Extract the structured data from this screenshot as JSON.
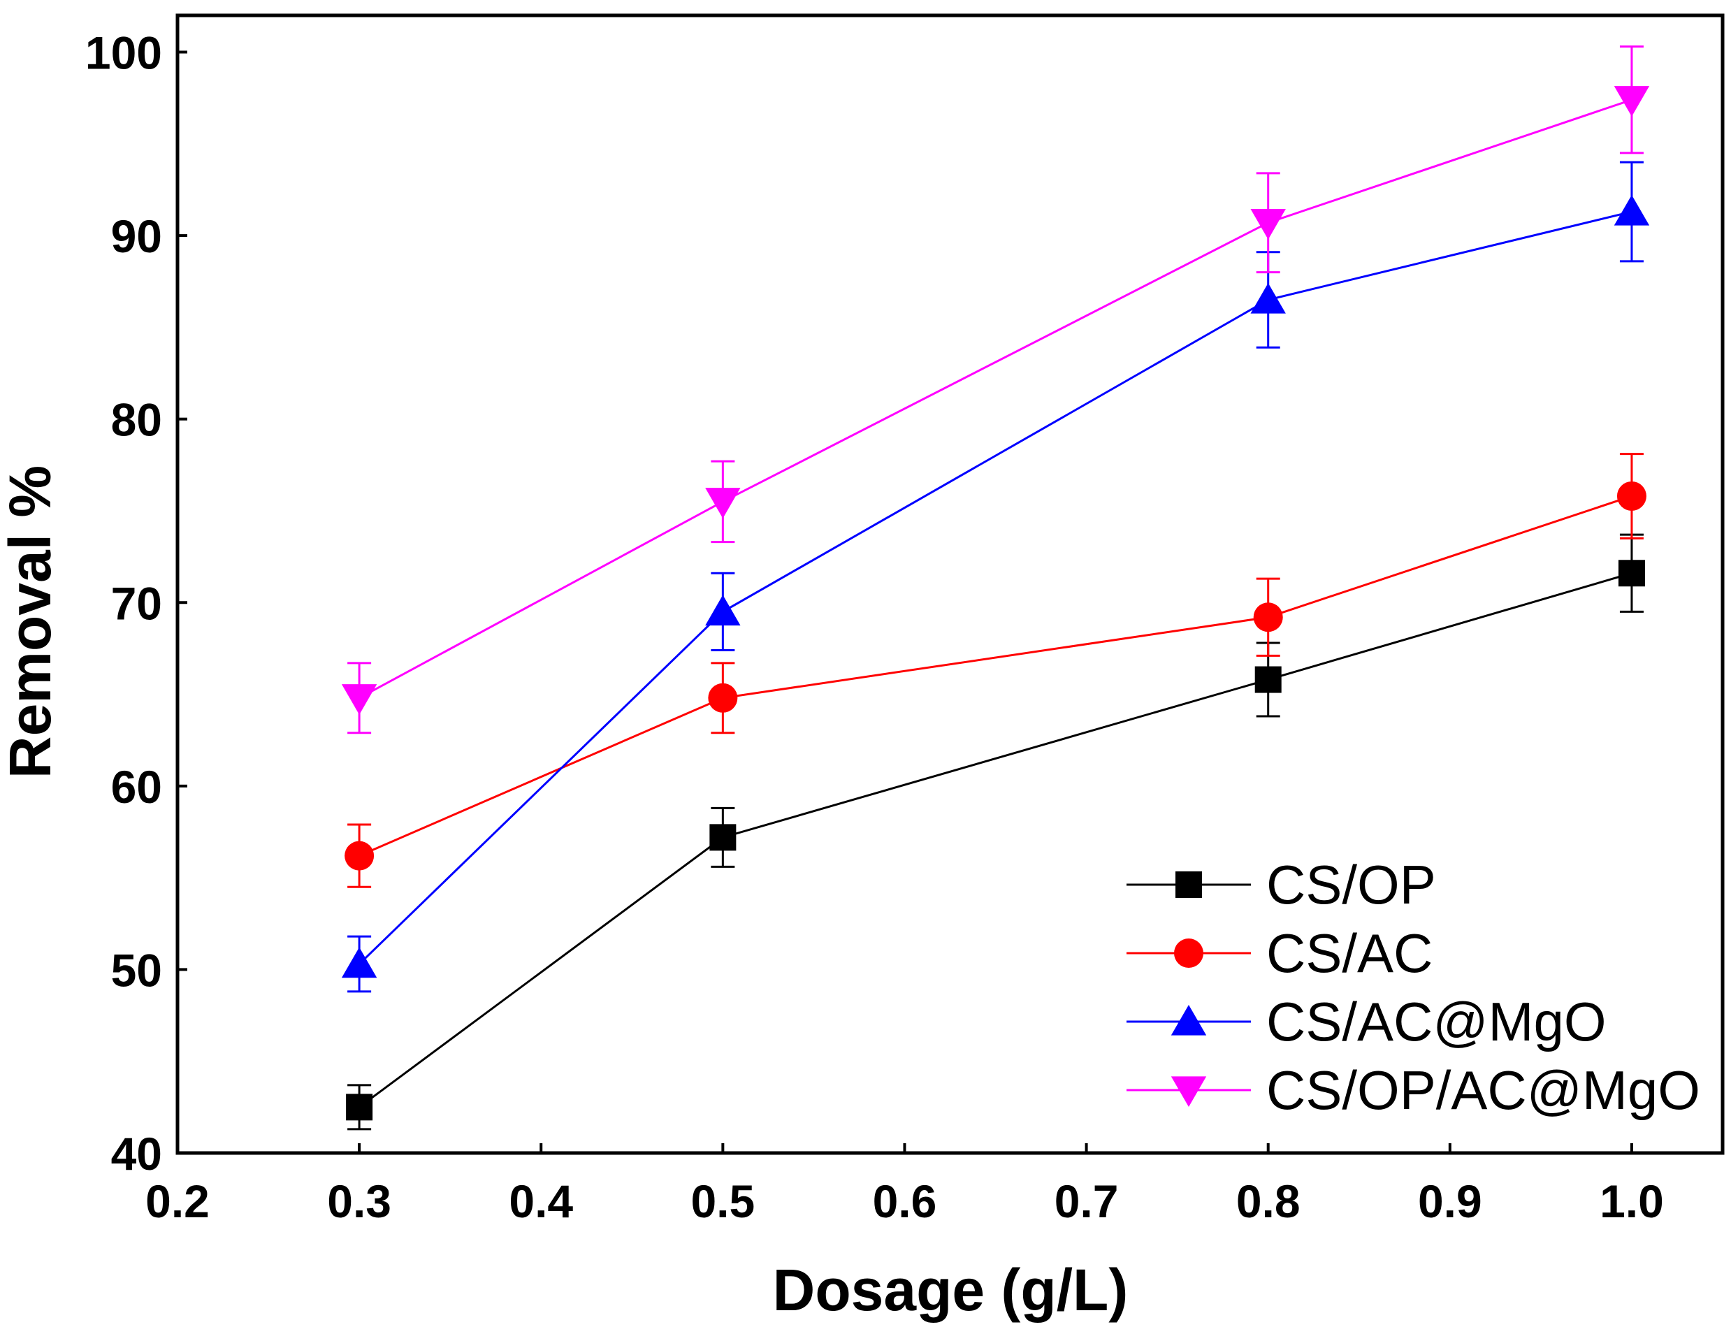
{
  "chart_data": {
    "type": "line",
    "title": "",
    "xlabel": "Dosage (g/L)",
    "ylabel": "Removal %",
    "xlim": [
      0.2,
      1.05
    ],
    "ylim": [
      40,
      102
    ],
    "x_ticks": [
      0.2,
      0.3,
      0.4,
      0.5,
      0.6,
      0.7,
      0.8,
      0.9,
      1.0
    ],
    "x_tick_labels": [
      "0.2",
      "0.3",
      "0.4",
      "0.5",
      "0.6",
      "0.7",
      "0.8",
      "0.9",
      "1.0"
    ],
    "y_ticks": [
      40,
      50,
      60,
      70,
      80,
      90,
      100
    ],
    "y_tick_labels": [
      "40",
      "50",
      "60",
      "70",
      "80",
      "90",
      "100"
    ],
    "grid": false,
    "legend_position": "bottom-right",
    "x": [
      0.3,
      0.5,
      0.8,
      1.0
    ],
    "series": [
      {
        "name": "CS/OP",
        "color": "#000000",
        "marker": "square",
        "values": [
          42.5,
          57.2,
          65.8,
          71.6
        ],
        "errors": [
          1.2,
          1.6,
          2.0,
          2.1
        ]
      },
      {
        "name": "CS/AC",
        "color": "#ff0000",
        "marker": "circle",
        "values": [
          56.2,
          64.8,
          69.2,
          75.8
        ],
        "errors": [
          1.7,
          1.9,
          2.1,
          2.3
        ]
      },
      {
        "name": "CS/AC@MgO",
        "color": "#0000ff",
        "marker": "triangle-up",
        "values": [
          50.3,
          69.5,
          86.5,
          91.3
        ],
        "errors": [
          1.5,
          2.1,
          2.6,
          2.7
        ]
      },
      {
        "name": "CS/OP/AC@MgO",
        "color": "#ff00ff",
        "marker": "triangle-down",
        "values": [
          64.8,
          75.5,
          90.7,
          97.4
        ],
        "errors": [
          1.9,
          2.2,
          2.7,
          2.9
        ]
      }
    ]
  }
}
